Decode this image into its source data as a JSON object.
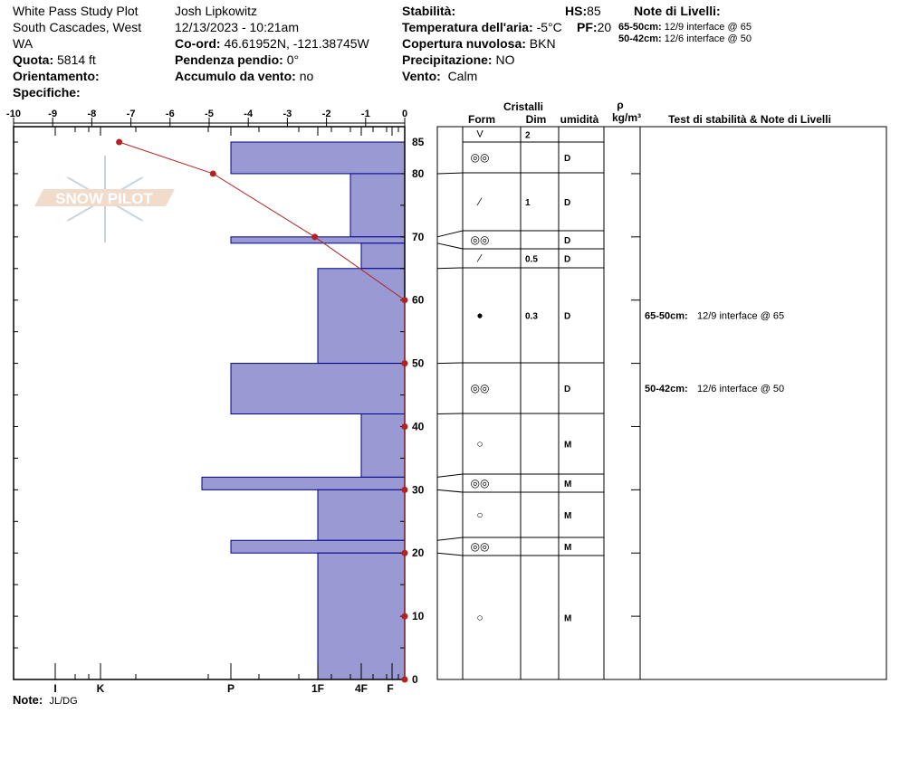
{
  "header": {
    "col1": {
      "line1": "White Pass Study Plot",
      "line2": "South Cascades, West",
      "line3": "WA",
      "elev_label": "Quota:",
      "elev_value": "5814 ft",
      "aspect_label": "Orientamento:",
      "aspect_value": "",
      "specifics_label": "Specifiche:",
      "specifics_value": ""
    },
    "col2": {
      "observer": "Josh Lipkowitz",
      "datetime": "12/13/2023 - 10:21am",
      "coord_label": "Co-ord:",
      "coord_value": "46.61952N, -121.38745W",
      "slope_label": "Pendenza pendio:",
      "slope_value": "0°",
      "windload_label": "Accumulo da vento:",
      "windload_value": "no"
    },
    "col3": {
      "stability_label": "Stabilità:",
      "stability_value": "",
      "airtemp_label": "Temperatura dell'aria:",
      "airtemp_value": "-5°C",
      "cloud_label": "Copertura nuvolosa:",
      "cloud_value": "BKN",
      "precip_label": "Precipitazione:",
      "precip_value": "NO",
      "wind_label": "Vento:",
      "wind_value": "Calm",
      "hs_label": "HS:",
      "hs_value": "85",
      "pf_label": "PF:",
      "pf_value": "20"
    },
    "layer_notes": {
      "title": "Note di Livelli:",
      "items": [
        {
          "range": "65-50cm:",
          "text": "12/9 interface @ 65"
        },
        {
          "range": "50-42cm:",
          "text": "12/6 interface @ 50"
        }
      ]
    }
  },
  "footer": {
    "note_label": "Note:",
    "note_value": "JL/DG"
  },
  "watermark": "SNOW PILOT",
  "table_headers": {
    "crystals": "Cristalli",
    "form": "Form",
    "size": "Dim",
    "moisture": "umidità",
    "density_symbol": "ρ",
    "density_unit": "kg/m³",
    "tests": "Test di stabilità & Note di Livelli"
  },
  "colors": {
    "hardness_fill": "#9999d4",
    "hardness_stroke": "#00008b",
    "temp_line": "#b22222"
  },
  "chart_data": {
    "type": "snow-profile",
    "temperature_axis": {
      "ticks": [
        "-10",
        "-9",
        "-8",
        "-7",
        "-6",
        "-5",
        "-4",
        "-3",
        "-2",
        "-1",
        "0"
      ],
      "range": [
        -10,
        0
      ]
    },
    "hardness_axis": {
      "labels": [
        "I",
        "K",
        "P",
        "1F",
        "4F",
        "F"
      ]
    },
    "depth_axis": {
      "ticks": [
        "85",
        "80",
        "70",
        "60",
        "50",
        "40",
        "30",
        "20",
        "10",
        "0"
      ],
      "range": [
        0,
        85
      ]
    },
    "layers": [
      {
        "top": 85,
        "bottom": 80,
        "hardness": "P"
      },
      {
        "top": 80,
        "bottom": 70,
        "hardness": "4F+"
      },
      {
        "top": 70,
        "bottom": 69,
        "hardness": "P"
      },
      {
        "top": 69,
        "bottom": 65,
        "hardness": "4F"
      },
      {
        "top": 65,
        "bottom": 50,
        "hardness": "1F"
      },
      {
        "top": 50,
        "bottom": 42,
        "hardness": "P"
      },
      {
        "top": 42,
        "bottom": 32,
        "hardness": "4F"
      },
      {
        "top": 32,
        "bottom": 30,
        "hardness": "P+"
      },
      {
        "top": 30,
        "bottom": 22,
        "hardness": "1F"
      },
      {
        "top": 22,
        "bottom": 20,
        "hardness": "P"
      },
      {
        "top": 20,
        "bottom": 0,
        "hardness": "1F"
      }
    ],
    "temperature_profile": [
      {
        "depth": 85,
        "temp": -7.3
      },
      {
        "depth": 80,
        "temp": -4.9
      },
      {
        "depth": 70,
        "temp": -2.3
      },
      {
        "depth": 60,
        "temp": 0
      },
      {
        "depth": 50,
        "temp": 0
      },
      {
        "depth": 40,
        "temp": 0
      },
      {
        "depth": 30,
        "temp": 0
      },
      {
        "depth": 20,
        "temp": 0
      },
      {
        "depth": 10,
        "temp": 0
      },
      {
        "depth": 0,
        "temp": 0
      }
    ],
    "crystal_rows": [
      {
        "form": "surface-hoar",
        "glyph": "V",
        "size": "2",
        "moisture": "",
        "note_range": "",
        "note": ""
      },
      {
        "form": "melt-forms",
        "glyph": "◎◎",
        "size": "",
        "moisture": "D",
        "note_range": "",
        "note": ""
      },
      {
        "form": "crust",
        "glyph": "⁄",
        "size": "1",
        "moisture": "D",
        "note_range": "",
        "note": ""
      },
      {
        "form": "melt-forms",
        "glyph": "◎◎",
        "size": "",
        "moisture": "D",
        "note_range": "",
        "note": ""
      },
      {
        "form": "crust",
        "glyph": "⁄",
        "size": "0.5",
        "moisture": "D",
        "note_range": "",
        "note": ""
      },
      {
        "form": "rounds",
        "glyph": "●",
        "size": "0.3",
        "moisture": "D",
        "note_range": "65-50cm:",
        "note": "12/9 interface @ 65"
      },
      {
        "form": "melt-forms",
        "glyph": "◎◎",
        "size": "",
        "moisture": "D",
        "note_range": "50-42cm:",
        "note": "12/6 interface @ 50"
      },
      {
        "form": "melt-form",
        "glyph": "○",
        "size": "",
        "moisture": "M",
        "note_range": "",
        "note": ""
      },
      {
        "form": "melt-forms",
        "glyph": "◎◎",
        "size": "",
        "moisture": "M",
        "note_range": "",
        "note": ""
      },
      {
        "form": "melt-form",
        "glyph": "○",
        "size": "",
        "moisture": "M",
        "note_range": "",
        "note": ""
      },
      {
        "form": "melt-forms",
        "glyph": "◎◎",
        "size": "",
        "moisture": "M",
        "note_range": "",
        "note": ""
      },
      {
        "form": "melt-form",
        "glyph": "○",
        "size": "",
        "moisture": "M",
        "note_range": "",
        "note": ""
      }
    ]
  }
}
